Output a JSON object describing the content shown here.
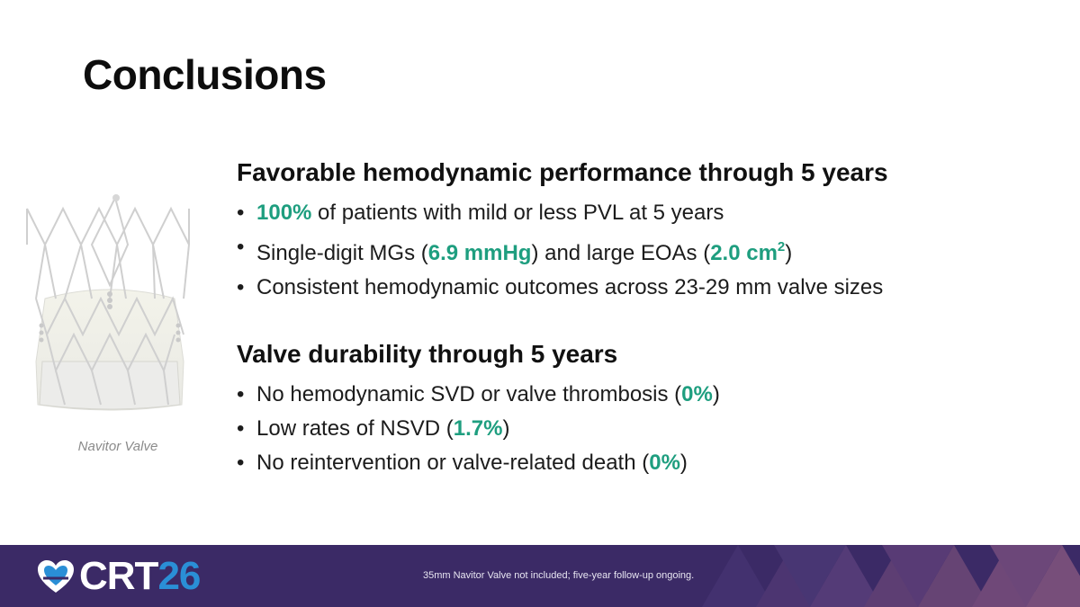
{
  "slide": {
    "title": "Conclusions"
  },
  "image": {
    "caption": "Navitor Valve"
  },
  "sections": [
    {
      "heading": "Favorable hemodynamic performance through 5 years",
      "bullets": [
        {
          "highlight": "100%",
          "after": " of patients with mild or less PVL at 5 years"
        },
        {
          "before": "Single-digit MGs (",
          "highlight": "6.9 mmHg",
          "middle": ") and large EOAs (",
          "highlight2": "2.0 cm",
          "sup": "2",
          "after": ")"
        },
        {
          "text": "Consistent hemodynamic outcomes across 23-29 mm valve sizes"
        }
      ]
    },
    {
      "heading": "Valve durability through 5 years",
      "bullets": [
        {
          "before": "No hemodynamic SVD or valve thrombosis (",
          "highlight": "0%",
          "after": ")"
        },
        {
          "before": "Low rates of NSVD (",
          "highlight": "1.7%",
          "after": ")"
        },
        {
          "before": "No reintervention or valve-related death (",
          "highlight": "0%",
          "after": ")"
        }
      ]
    }
  ],
  "footer": {
    "logo_text": "CRT",
    "logo_number": "26",
    "footnote": "35mm Navitor Valve not included; five-year follow-up ongoing."
  },
  "colors": {
    "highlight": "#1e9e7f",
    "footer_bg": "#3b2a66",
    "logo_number": "#2a8fd6"
  }
}
